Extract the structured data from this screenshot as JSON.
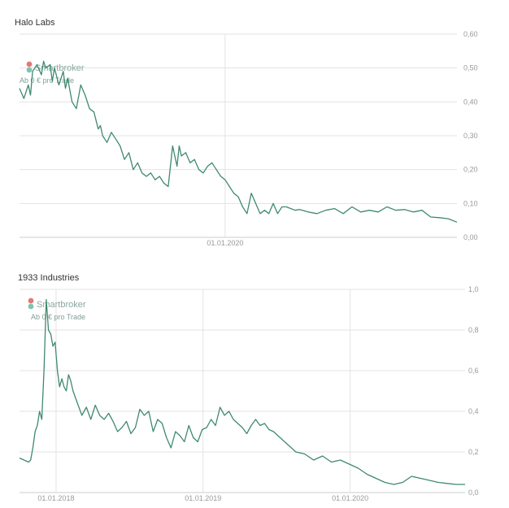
{
  "colors": {
    "line": "#3f8a6e",
    "grid": "#e3e3e3",
    "axis_text": "#999999",
    "title": "#333333",
    "watermark": "#8aa7a0"
  },
  "watermark": {
    "brand": "Smartbroker",
    "tagline": "Ab 0 € pro Trade"
  },
  "chart_data": [
    {
      "type": "line",
      "title": "Halo Labs",
      "ylim": [
        0,
        0.6
      ],
      "yticks": [
        0,
        0.1,
        0.2,
        0.3,
        0.4,
        0.5,
        0.6
      ],
      "ytick_labels": [
        "0,00",
        "0,10",
        "0,20",
        "0,30",
        "0,40",
        "0,50",
        "0,60"
      ],
      "xticks": [
        {
          "t": 0.47,
          "label": "01.01.2020"
        }
      ],
      "grid": true,
      "series": [
        {
          "t": [
            0.0,
            0.01,
            0.02,
            0.025,
            0.03,
            0.04,
            0.05,
            0.055,
            0.06,
            0.07,
            0.075,
            0.08,
            0.09,
            0.1,
            0.105,
            0.11,
            0.12,
            0.13,
            0.14,
            0.15,
            0.16,
            0.17,
            0.18,
            0.185,
            0.19,
            0.2,
            0.21,
            0.22,
            0.23,
            0.24,
            0.25,
            0.26,
            0.27,
            0.28,
            0.29,
            0.3,
            0.31,
            0.32,
            0.33,
            0.34,
            0.35,
            0.36,
            0.365,
            0.37,
            0.38,
            0.39,
            0.4,
            0.41,
            0.42,
            0.43,
            0.44,
            0.45,
            0.46,
            0.47,
            0.48,
            0.49,
            0.5,
            0.51,
            0.52,
            0.53,
            0.54,
            0.55,
            0.56,
            0.57,
            0.58,
            0.59,
            0.6,
            0.61,
            0.62,
            0.63,
            0.64,
            0.66,
            0.68,
            0.7,
            0.72,
            0.74,
            0.76,
            0.78,
            0.8,
            0.82,
            0.84,
            0.86,
            0.88,
            0.9,
            0.92,
            0.94,
            0.96,
            0.98,
            1.0
          ],
          "values": [
            0.44,
            0.41,
            0.45,
            0.42,
            0.49,
            0.51,
            0.48,
            0.52,
            0.5,
            0.51,
            0.46,
            0.5,
            0.45,
            0.49,
            0.44,
            0.47,
            0.4,
            0.38,
            0.45,
            0.42,
            0.38,
            0.37,
            0.32,
            0.33,
            0.3,
            0.28,
            0.31,
            0.29,
            0.27,
            0.23,
            0.25,
            0.2,
            0.22,
            0.19,
            0.18,
            0.19,
            0.17,
            0.18,
            0.16,
            0.15,
            0.27,
            0.21,
            0.27,
            0.24,
            0.25,
            0.22,
            0.23,
            0.2,
            0.19,
            0.21,
            0.22,
            0.2,
            0.18,
            0.17,
            0.15,
            0.13,
            0.12,
            0.09,
            0.07,
            0.13,
            0.1,
            0.07,
            0.08,
            0.07,
            0.1,
            0.07,
            0.09,
            0.09,
            0.085,
            0.08,
            0.082,
            0.075,
            0.07,
            0.08,
            0.085,
            0.07,
            0.09,
            0.075,
            0.08,
            0.075,
            0.09,
            0.08,
            0.082,
            0.075,
            0.08,
            0.06,
            0.058,
            0.055,
            0.045
          ]
        }
      ]
    },
    {
      "type": "line",
      "title": "1933 Industries",
      "ylim": [
        0,
        1.0
      ],
      "yticks": [
        0,
        0.2,
        0.4,
        0.6,
        0.8,
        1.0
      ],
      "ytick_labels": [
        "0,0",
        "0,2",
        "0,4",
        "0,6",
        "0,8",
        "1,0"
      ],
      "xticks": [
        {
          "t": 0.082,
          "label": "01.01.2018"
        },
        {
          "t": 0.412,
          "label": "01.01.2019"
        },
        {
          "t": 0.742,
          "label": "01.01.2020"
        }
      ],
      "grid": true,
      "series": [
        {
          "t": [
            0.0,
            0.01,
            0.02,
            0.025,
            0.03,
            0.035,
            0.04,
            0.045,
            0.05,
            0.055,
            0.06,
            0.065,
            0.07,
            0.075,
            0.08,
            0.085,
            0.09,
            0.095,
            0.1,
            0.105,
            0.11,
            0.115,
            0.12,
            0.13,
            0.14,
            0.15,
            0.16,
            0.17,
            0.18,
            0.19,
            0.2,
            0.21,
            0.22,
            0.23,
            0.24,
            0.25,
            0.26,
            0.27,
            0.28,
            0.29,
            0.3,
            0.31,
            0.32,
            0.33,
            0.34,
            0.35,
            0.36,
            0.37,
            0.38,
            0.39,
            0.4,
            0.41,
            0.42,
            0.43,
            0.44,
            0.45,
            0.46,
            0.47,
            0.48,
            0.49,
            0.5,
            0.51,
            0.52,
            0.53,
            0.54,
            0.55,
            0.56,
            0.57,
            0.58,
            0.59,
            0.6,
            0.62,
            0.64,
            0.66,
            0.68,
            0.7,
            0.72,
            0.74,
            0.76,
            0.78,
            0.8,
            0.82,
            0.84,
            0.86,
            0.88,
            0.9,
            0.92,
            0.94,
            0.96,
            0.98,
            1.0
          ],
          "values": [
            0.17,
            0.16,
            0.15,
            0.16,
            0.22,
            0.3,
            0.33,
            0.4,
            0.36,
            0.6,
            0.95,
            0.8,
            0.78,
            0.72,
            0.74,
            0.6,
            0.52,
            0.56,
            0.52,
            0.5,
            0.58,
            0.55,
            0.5,
            0.44,
            0.38,
            0.42,
            0.36,
            0.43,
            0.38,
            0.36,
            0.39,
            0.35,
            0.3,
            0.32,
            0.35,
            0.29,
            0.32,
            0.41,
            0.38,
            0.4,
            0.3,
            0.36,
            0.34,
            0.27,
            0.22,
            0.3,
            0.28,
            0.25,
            0.33,
            0.27,
            0.25,
            0.31,
            0.32,
            0.36,
            0.33,
            0.42,
            0.38,
            0.4,
            0.36,
            0.34,
            0.32,
            0.29,
            0.33,
            0.36,
            0.33,
            0.34,
            0.31,
            0.3,
            0.28,
            0.26,
            0.24,
            0.2,
            0.19,
            0.16,
            0.18,
            0.15,
            0.16,
            0.14,
            0.12,
            0.09,
            0.07,
            0.05,
            0.04,
            0.05,
            0.08,
            0.07,
            0.06,
            0.05,
            0.045,
            0.04,
            0.04
          ]
        }
      ]
    }
  ]
}
